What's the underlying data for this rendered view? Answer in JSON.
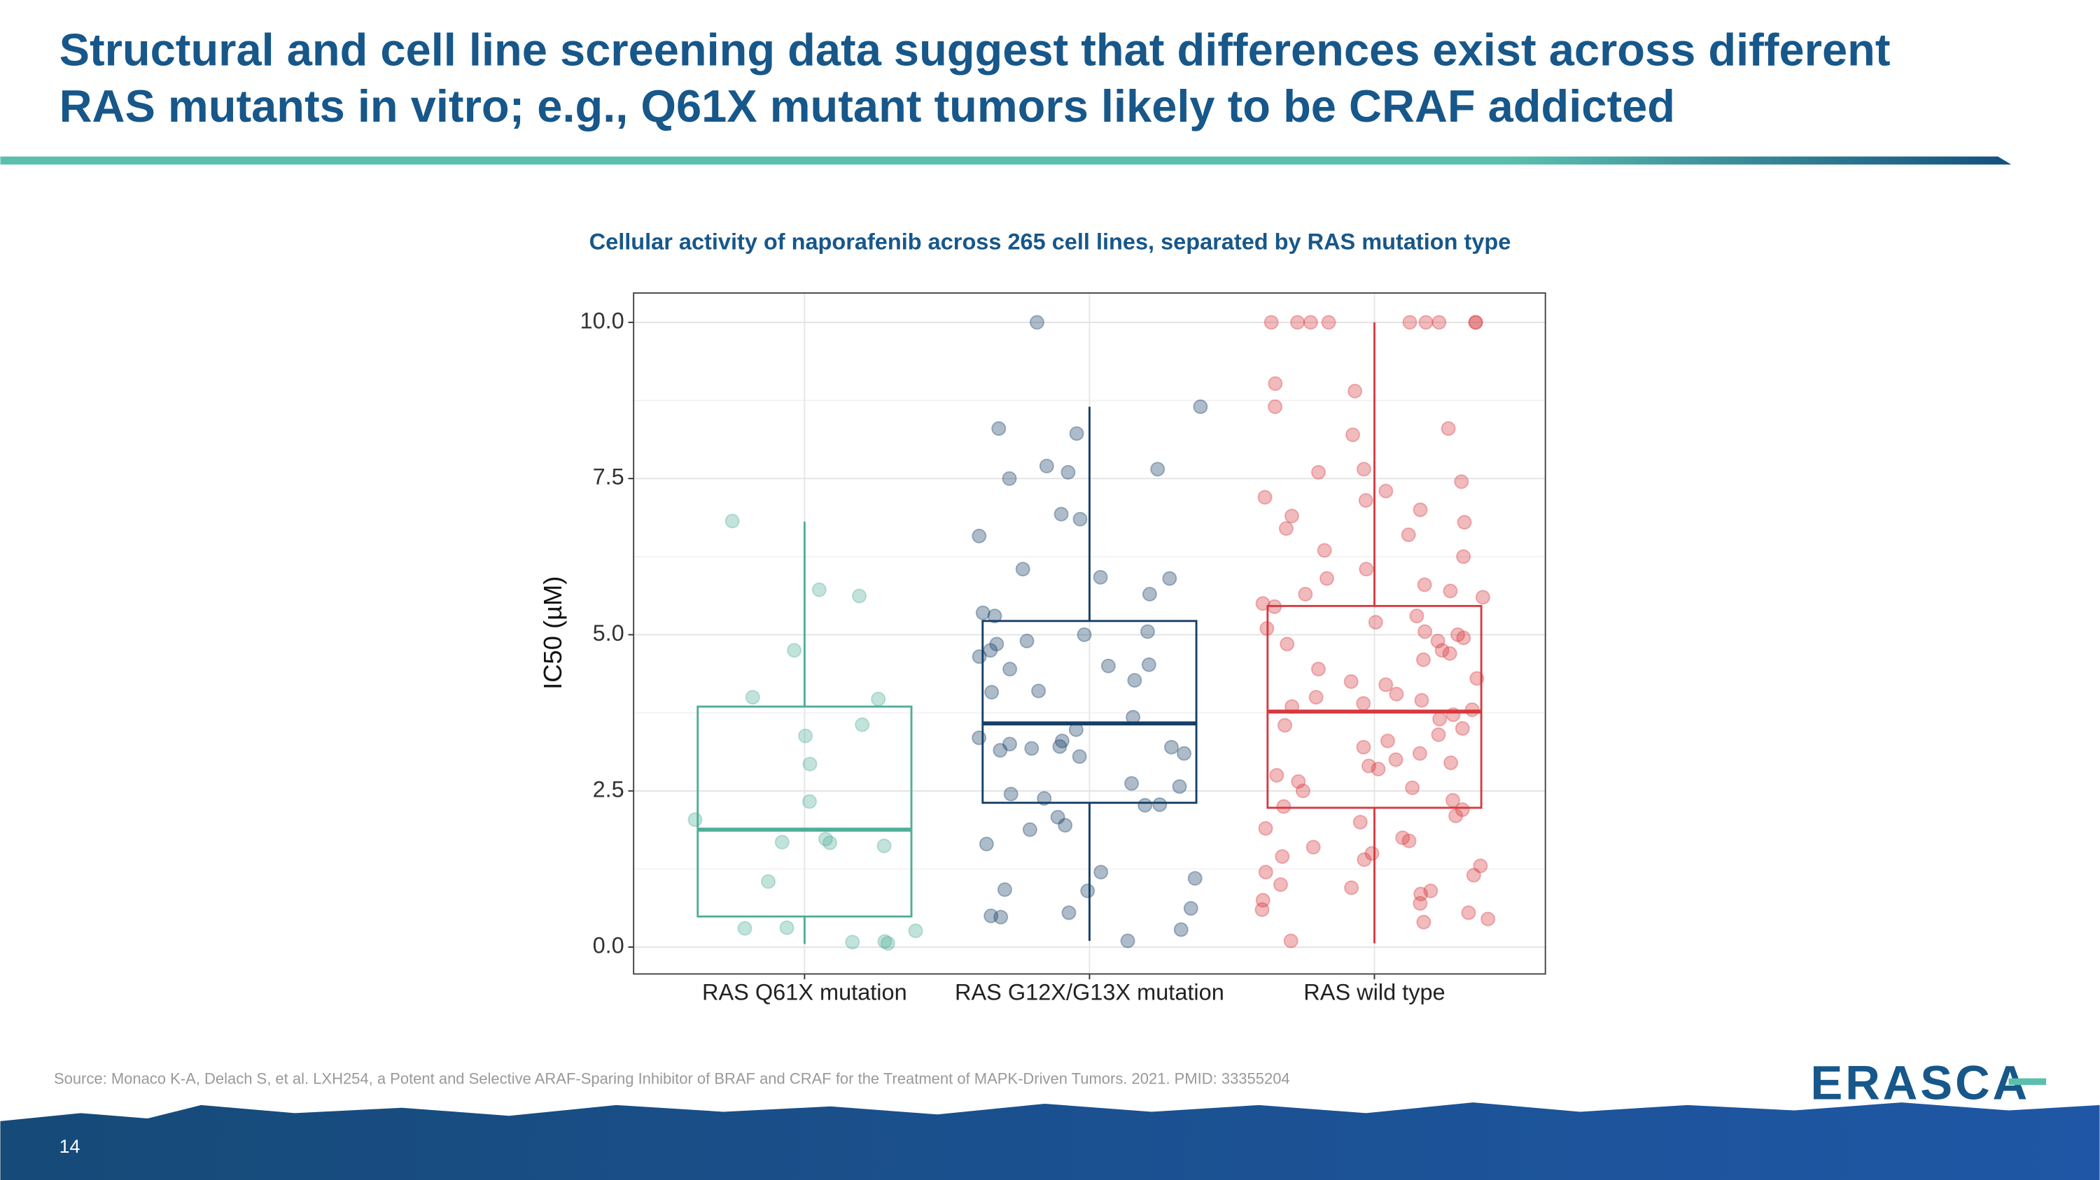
{
  "title_lines": [
    "Structural and cell line screening data suggest that differences exist across different",
    "RAS mutants in vitro; e.g., Q61X mutant tumors likely to be CRAF addicted"
  ],
  "chart_data": {
    "type": "box",
    "title": "Cellular activity of naporafenib across 265 cell lines, separated by RAS mutation type",
    "ylabel": "IC50 (µM)",
    "categories": [
      "RAS Q61X mutation",
      "RAS G12X/G13X mutation",
      "RAS wild type"
    ],
    "ylim": [
      -0.43,
      10.47
    ],
    "yticks": [
      {
        "value": 0,
        "label": "0.0"
      },
      {
        "value": 2.5,
        "label": "2.5"
      },
      {
        "value": 5,
        "label": "5.0"
      },
      {
        "value": 7.5,
        "label": "7.5"
      },
      {
        "value": 10,
        "label": "10.0"
      }
    ],
    "grid": true,
    "boxes": [
      {
        "color": "#4fae98",
        "min": 0.05,
        "q1": 0.49,
        "median": 1.88,
        "q3": 3.85,
        "max": 6.81,
        "points": [
          6.82,
          5.62,
          5.72,
          4.75,
          4.0,
          3.97,
          3.56,
          3.38,
          2.93,
          2.33,
          2.04,
          1.73,
          1.67,
          1.68,
          1.62,
          1.05,
          0.31,
          0.3,
          0.26,
          0.08,
          0.06,
          0.09
        ]
      },
      {
        "color": "#163f66",
        "min": 0.1,
        "q1": 2.31,
        "median": 3.58,
        "q3": 5.22,
        "max": 8.65,
        "points": [
          10.0,
          8.65,
          8.3,
          8.22,
          7.65,
          7.6,
          7.7,
          7.5,
          6.93,
          6.85,
          6.58,
          6.05,
          5.92,
          5.9,
          5.65,
          5.35,
          5.3,
          5.05,
          5.0,
          4.9,
          4.85,
          4.75,
          4.65,
          4.5,
          4.45,
          4.52,
          4.27,
          4.1,
          4.08,
          3.68,
          3.48,
          3.35,
          3.25,
          3.3,
          3.2,
          3.21,
          3.18,
          3.15,
          3.1,
          3.05,
          2.62,
          2.57,
          2.45,
          2.38,
          2.28,
          2.27,
          2.08,
          1.95,
          1.88,
          1.65,
          1.2,
          1.1,
          0.92,
          0.9,
          0.62,
          0.55,
          0.5,
          0.48,
          0.28,
          0.1
        ]
      },
      {
        "color": "#d63a40",
        "min": 0.06,
        "q1": 2.23,
        "median": 3.77,
        "q3": 5.46,
        "max": 10.0,
        "points": [
          10.0,
          10.0,
          10.0,
          10.0,
          10.0,
          10.0,
          10.0,
          10.0,
          10.0,
          9.02,
          8.9,
          8.65,
          8.3,
          8.2,
          7.65,
          7.6,
          7.45,
          7.3,
          7.2,
          7.15,
          7.0,
          6.9,
          6.8,
          6.7,
          6.6,
          6.35,
          6.25,
          6.05,
          5.9,
          5.8,
          5.7,
          5.65,
          5.6,
          5.5,
          5.45,
          5.3,
          5.2,
          5.1,
          5.05,
          5.0,
          4.95,
          4.9,
          4.85,
          4.75,
          4.7,
          4.6,
          4.45,
          4.3,
          4.25,
          4.2,
          4.05,
          4.0,
          3.95,
          3.9,
          3.85,
          3.8,
          3.72,
          3.65,
          3.55,
          3.5,
          3.4,
          3.3,
          3.2,
          3.1,
          3.0,
          2.95,
          2.9,
          2.85,
          2.75,
          2.65,
          2.55,
          2.5,
          2.35,
          2.25,
          2.2,
          2.1,
          2.0,
          1.9,
          1.75,
          1.7,
          1.6,
          1.5,
          1.45,
          1.4,
          1.3,
          1.2,
          1.15,
          1.0,
          0.95,
          0.9,
          0.85,
          0.75,
          0.7,
          0.6,
          0.55,
          0.45,
          0.4,
          0.1
        ]
      }
    ]
  },
  "source": "Source: Monaco K-A, Delach S, et al. LXH254, a Potent and Selective ARAF-Sparing Inhibitor of BRAF and CRAF for the Treatment of MAPK-Driven Tumors. 2021. PMID: 33355204",
  "page_number": "14",
  "logo": "ERASCA"
}
